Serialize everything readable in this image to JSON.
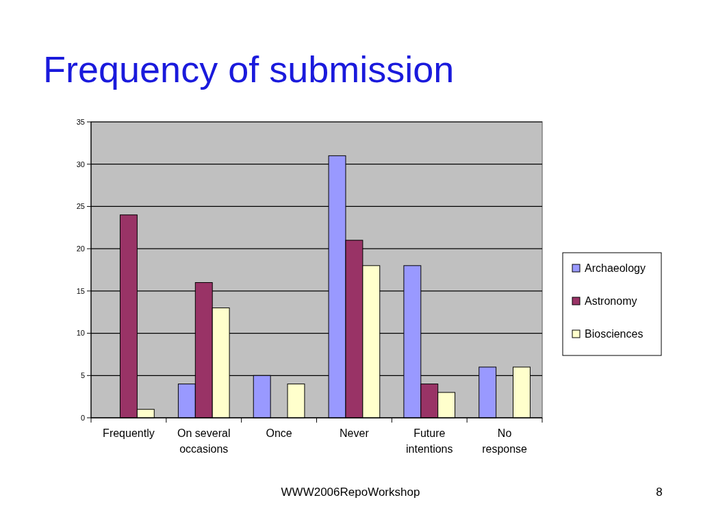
{
  "chart_data": {
    "type": "bar",
    "title": "Frequency of submission",
    "categories": [
      "Frequently",
      "On several occasions",
      "Once",
      "Never",
      "Future intentions",
      "No response"
    ],
    "series": [
      {
        "name": "Archaeology",
        "color": "#9999ff",
        "values": [
          0,
          4,
          5,
          31,
          18,
          6
        ]
      },
      {
        "name": "Astronomy",
        "color": "#993366",
        "values": [
          24,
          16,
          0,
          21,
          4,
          0
        ]
      },
      {
        "name": "Biosciences",
        "color": "#ffffcc",
        "values": [
          1,
          13,
          4,
          18,
          3,
          6
        ]
      }
    ],
    "ylim": [
      0,
      35
    ],
    "yticks": [
      0,
      5,
      10,
      15,
      20,
      25,
      30,
      35
    ],
    "grid": "y",
    "legend": "right",
    "annotations": [
      "WWW2006RepoWorkshop",
      "8"
    ]
  }
}
